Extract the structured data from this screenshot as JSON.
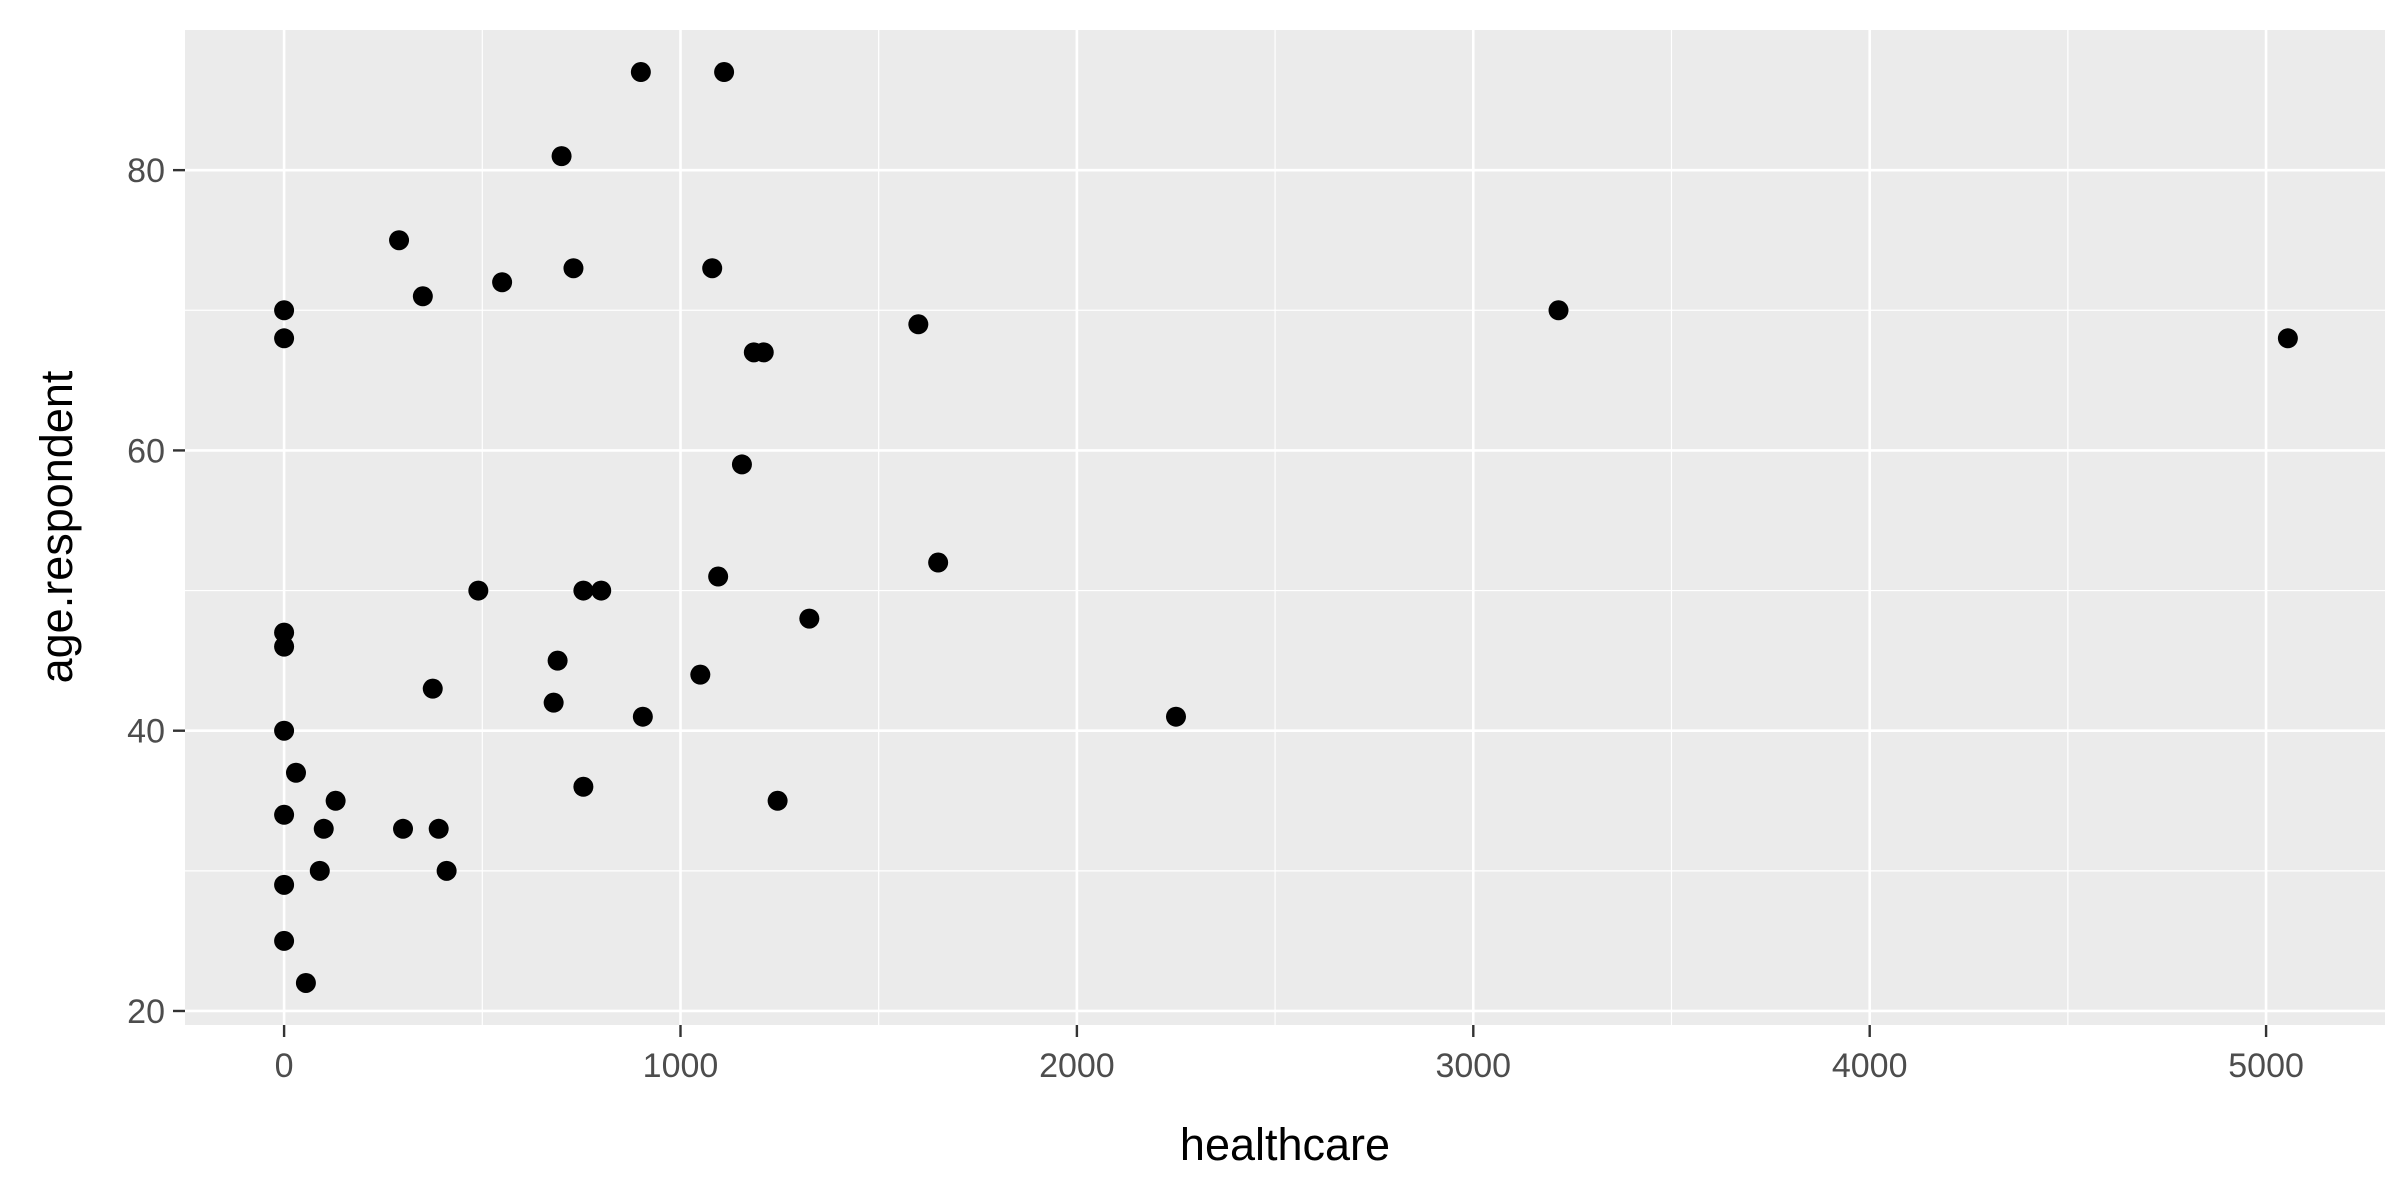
{
  "chart_data": {
    "type": "scatter",
    "xlabel": "healthcare",
    "ylabel": "age.respondent",
    "xlim": [
      -250,
      5300
    ],
    "ylim": [
      19,
      90
    ],
    "x_ticks": [
      0,
      1000,
      2000,
      3000,
      4000,
      5000
    ],
    "x_minor_ticks": [
      500,
      1500,
      2500,
      3500,
      4500
    ],
    "y_ticks": [
      20,
      40,
      60,
      80
    ],
    "y_minor_ticks": [
      30,
      50,
      70
    ],
    "grid": true,
    "legend": "none",
    "colors": {
      "panel": "#ebebeb",
      "grid": "#ffffff",
      "point": "#000000"
    },
    "points": [
      {
        "x": 900,
        "y": 87
      },
      {
        "x": 1110,
        "y": 87
      },
      {
        "x": 700,
        "y": 81
      },
      {
        "x": 290,
        "y": 75
      },
      {
        "x": 730,
        "y": 73
      },
      {
        "x": 1080,
        "y": 73
      },
      {
        "x": 550,
        "y": 72
      },
      {
        "x": 350,
        "y": 71
      },
      {
        "x": 0,
        "y": 70
      },
      {
        "x": 3215,
        "y": 70
      },
      {
        "x": 1600,
        "y": 69
      },
      {
        "x": 0,
        "y": 68
      },
      {
        "x": 5055,
        "y": 68
      },
      {
        "x": 1185,
        "y": 67
      },
      {
        "x": 1210,
        "y": 67
      },
      {
        "x": 1155,
        "y": 59
      },
      {
        "x": 1650,
        "y": 52
      },
      {
        "x": 1095,
        "y": 51
      },
      {
        "x": 490,
        "y": 50
      },
      {
        "x": 755,
        "y": 50
      },
      {
        "x": 800,
        "y": 50
      },
      {
        "x": 1325,
        "y": 48
      },
      {
        "x": 0,
        "y": 47
      },
      {
        "x": 0,
        "y": 46
      },
      {
        "x": 690,
        "y": 45
      },
      {
        "x": 1050,
        "y": 44
      },
      {
        "x": 375,
        "y": 43
      },
      {
        "x": 680,
        "y": 42
      },
      {
        "x": 905,
        "y": 41
      },
      {
        "x": 2250,
        "y": 41
      },
      {
        "x": 0,
        "y": 40
      },
      {
        "x": 30,
        "y": 37
      },
      {
        "x": 755,
        "y": 36
      },
      {
        "x": 130,
        "y": 35
      },
      {
        "x": 1245,
        "y": 35
      },
      {
        "x": 0,
        "y": 34
      },
      {
        "x": 100,
        "y": 33
      },
      {
        "x": 300,
        "y": 33
      },
      {
        "x": 390,
        "y": 33
      },
      {
        "x": 90,
        "y": 30
      },
      {
        "x": 410,
        "y": 30
      },
      {
        "x": 0,
        "y": 29
      },
      {
        "x": 0,
        "y": 25
      },
      {
        "x": 55,
        "y": 22
      }
    ]
  }
}
